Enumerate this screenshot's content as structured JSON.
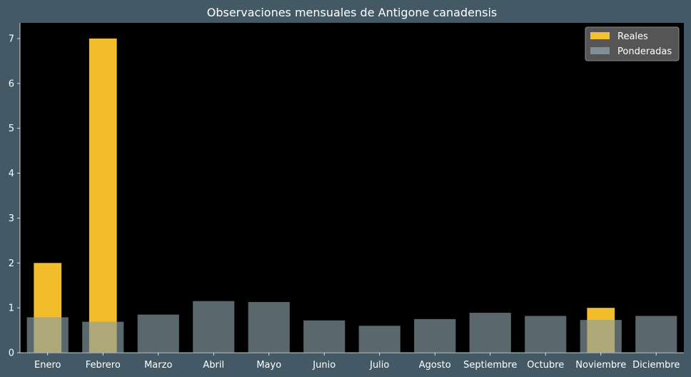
{
  "chart_data": {
    "type": "bar",
    "title": "Observaciones mensuales de Antigone canadensis",
    "xlabel": "",
    "ylabel": "",
    "categories": [
      "Enero",
      "Febrero",
      "Marzo",
      "Abril",
      "Mayo",
      "Junio",
      "Julio",
      "Agosto",
      "Septiembre",
      "Octubre",
      "Noviembre",
      "Diciembre"
    ],
    "series": [
      {
        "name": "Reales",
        "color": "#ffc72c",
        "values": [
          2,
          7,
          0,
          0,
          0,
          0,
          0,
          0,
          0,
          0,
          1,
          0
        ]
      },
      {
        "name": "Ponderadas",
        "color": "#8a9ea6",
        "values": [
          0.79,
          0.69,
          0.85,
          1.15,
          1.13,
          0.72,
          0.6,
          0.75,
          0.89,
          0.82,
          0.73,
          0.82
        ]
      }
    ],
    "ylim": [
      0,
      7.35
    ],
    "yticks": [
      0,
      1,
      2,
      3,
      4,
      5,
      6,
      7
    ],
    "grid": false,
    "legend_position": "top-right",
    "colors": {
      "background": "#435a66",
      "plot_background": "#000000",
      "text": "#ffffff"
    }
  }
}
